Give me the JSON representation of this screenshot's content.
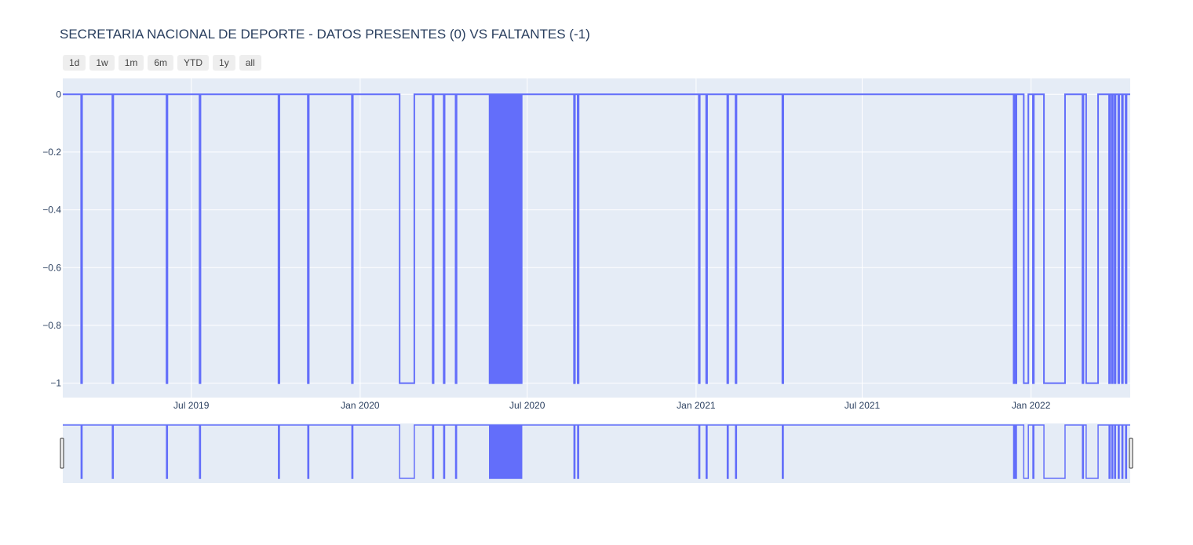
{
  "title": "SECRETARIA NACIONAL DE DEPORTE - DATOS PRESENTES (0) VS FALTANTES (-1)",
  "range_buttons": [
    "1d",
    "1w",
    "1m",
    "6m",
    "YTD",
    "1y",
    "all"
  ],
  "colors": {
    "line": "#636efa",
    "plot_bg": "#e5ecf6",
    "grid": "#ffffff",
    "text": "#2a3f5f"
  },
  "chart_data": {
    "type": "line",
    "line_shape": "step",
    "xlim": [
      "2019-02-11",
      "2022-04-19"
    ],
    "ylim": [
      -1.05,
      0.055
    ],
    "x_ticks": [
      {
        "date": "2019-07-01",
        "label": "Jul 2019"
      },
      {
        "date": "2020-01-01",
        "label": "Jan 2020"
      },
      {
        "date": "2020-07-01",
        "label": "Jul 2020"
      },
      {
        "date": "2021-01-01",
        "label": "Jan 2021"
      },
      {
        "date": "2021-07-01",
        "label": "Jul 2021"
      },
      {
        "date": "2022-01-01",
        "label": "Jan 2022"
      }
    ],
    "y_ticks": [
      {
        "value": 0,
        "label": "0"
      },
      {
        "value": -0.2,
        "label": "−0.2"
      },
      {
        "value": -0.4,
        "label": "−0.4"
      },
      {
        "value": -0.6,
        "label": "−0.6"
      },
      {
        "value": -0.8,
        "label": "−0.8"
      },
      {
        "value": -1,
        "label": "−1"
      }
    ],
    "range_slider": true,
    "missing_periods": [
      [
        "2019-03-03",
        "2019-03-04"
      ],
      [
        "2019-04-06",
        "2019-04-07"
      ],
      [
        "2019-06-04",
        "2019-06-05"
      ],
      [
        "2019-07-10",
        "2019-07-11"
      ],
      [
        "2019-10-04",
        "2019-10-05"
      ],
      [
        "2019-11-05",
        "2019-11-06"
      ],
      [
        "2019-12-23",
        "2019-12-24"
      ],
      [
        "2020-02-13",
        "2020-02-29"
      ],
      [
        "2020-03-20",
        "2020-03-21"
      ],
      [
        "2020-04-01",
        "2020-04-02"
      ],
      [
        "2020-04-14",
        "2020-04-15"
      ],
      [
        "2020-08-21",
        "2020-08-22"
      ],
      [
        "2020-08-25",
        "2020-08-26"
      ],
      [
        "2021-01-04",
        "2021-01-05"
      ],
      [
        "2021-01-12",
        "2021-01-13"
      ],
      [
        "2021-02-04",
        "2021-02-05"
      ],
      [
        "2021-02-13",
        "2021-02-14"
      ],
      [
        "2021-04-05",
        "2021-04-06"
      ],
      [
        "2021-12-13",
        "2021-12-14"
      ],
      [
        "2021-12-15",
        "2021-12-16"
      ],
      [
        "2021-12-24",
        "2021-12-29"
      ],
      [
        "2022-01-03",
        "2022-01-04"
      ],
      [
        "2022-01-15",
        "2022-02-07"
      ],
      [
        "2022-02-26",
        "2022-02-27"
      ],
      [
        "2022-03-02",
        "2022-03-15"
      ],
      [
        "2022-03-27",
        "2022-03-28"
      ],
      [
        "2022-03-30",
        "2022-03-31"
      ],
      [
        "2022-04-02",
        "2022-04-03"
      ],
      [
        "2022-04-06",
        "2022-04-07"
      ],
      [
        "2022-04-10",
        "2022-04-11"
      ],
      [
        "2022-04-14",
        "2022-04-15"
      ]
    ],
    "alternating_period": [
      "2020-05-21",
      "2020-06-26"
    ]
  }
}
